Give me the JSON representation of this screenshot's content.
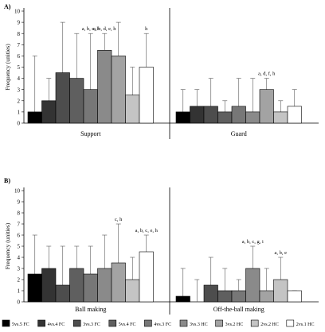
{
  "legend": {
    "items": [
      {
        "label": "5vs.5 FC",
        "color": "#000000"
      },
      {
        "label": "4vs.4 FC",
        "color": "#333333"
      },
      {
        "label": "3vs.3 FC",
        "color": "#4d4d4d"
      },
      {
        "label": "5vs.4 FC",
        "color": "#5f5f5f"
      },
      {
        "label": "4vs.3 FC",
        "color": "#777777"
      },
      {
        "label": "3vs.3 HC",
        "color": "#8a8a8a"
      },
      {
        "label": "3vs.2 HC",
        "color": "#a3a3a3"
      },
      {
        "label": "2vs.2 HC",
        "color": "#c4c4c4"
      },
      {
        "label": "2vs.1 HC",
        "color": "#ffffff"
      }
    ]
  },
  "chart_data": [
    {
      "type": "bar",
      "panel_label": "A)",
      "ylabel": "Frequency (unities)",
      "ylim": [
        0,
        10
      ],
      "yticks": [
        "0",
        "1",
        "2",
        "3",
        "4",
        "5",
        "6",
        "7",
        "8",
        "9",
        "10"
      ],
      "groups": [
        {
          "name": "Support",
          "values": [
            1.0,
            2.0,
            4.5,
            4.0,
            3.0,
            6.5,
            6.0,
            2.5,
            5.0
          ],
          "error_top": [
            6.0,
            4.0,
            9.0,
            8.0,
            8.0,
            8.0,
            9.0,
            5.0,
            8.0
          ],
          "annotations": [
            "",
            "",
            "",
            "",
            "a, b, e, h",
            "a, b, d, e, h",
            "",
            "",
            "h"
          ]
        },
        {
          "name": "Guard",
          "values": [
            1.0,
            1.5,
            1.5,
            1.0,
            1.5,
            1.0,
            3.0,
            1.0,
            1.5
          ],
          "error_top": [
            3.0,
            3.0,
            4.0,
            2.0,
            4.0,
            4.0,
            4.0,
            2.0,
            3.0
          ],
          "annotations": [
            "",
            "",
            "",
            "",
            "",
            "",
            "a, d, f, h",
            "",
            ""
          ]
        }
      ]
    },
    {
      "type": "bar",
      "panel_label": "B)",
      "ylabel": "Frequency (unities)",
      "ylim": [
        0,
        10
      ],
      "yticks": [
        "0",
        "1",
        "2",
        "3",
        "4",
        "5",
        "6",
        "7",
        "8",
        "9",
        "10"
      ],
      "groups": [
        {
          "name": "Ball making",
          "values": [
            2.5,
            3.0,
            1.5,
            3.0,
            2.5,
            3.0,
            3.5,
            2.0,
            4.5
          ],
          "error_top": [
            6.0,
            5.0,
            5.0,
            5.0,
            5.0,
            6.0,
            7.0,
            4.0,
            6.0
          ],
          "annotations": [
            "",
            "",
            "",
            "",
            "",
            "",
            "c, h",
            "",
            "a, b, c, e, h"
          ]
        },
        {
          "name": "Off-the-ball making",
          "values": [
            0.5,
            0.0,
            1.5,
            1.0,
            1.0,
            3.0,
            1.0,
            2.0,
            1.0
          ],
          "error_top": [
            3.0,
            2.0,
            4.0,
            3.0,
            2.0,
            5.0,
            3.0,
            4.0,
            1.0
          ],
          "annotations": [
            "",
            "",
            "",
            "",
            "",
            "a, b, c, g, i",
            "",
            "a, b, e",
            ""
          ]
        }
      ]
    }
  ]
}
